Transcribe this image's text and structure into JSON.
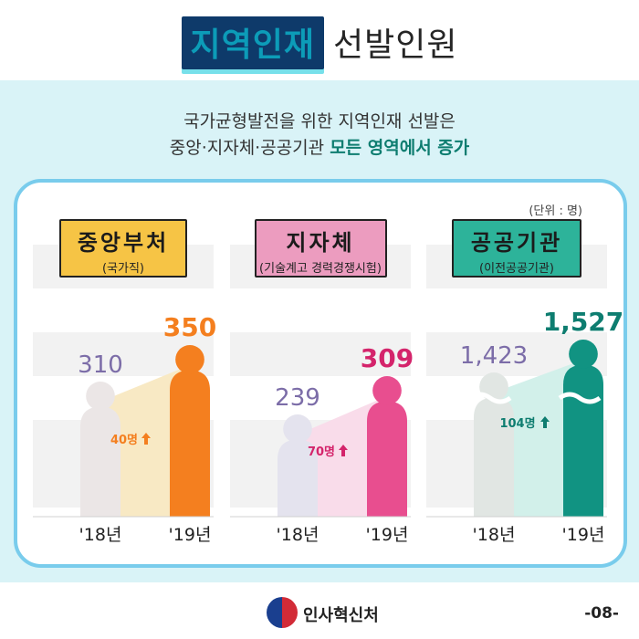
{
  "header": {
    "title_highlight": "지역인재",
    "title_rest": "선발인원"
  },
  "intro": {
    "line1": "국가균형발전을 위한 지역인재 선발은",
    "line2_plain": "중앙·지자체·공공기관",
    "line2_emphasis": "모든 영역에서 증가"
  },
  "unit_label": "(단위 : 명)",
  "colors": {
    "board_border": "#79ccec",
    "band": "#d9f3f7",
    "title_dark": "#0e3a6a",
    "title_light": "#0c9cb8"
  },
  "chart_data": [
    {
      "type": "bar",
      "title": "중앙부처",
      "subtitle": "(국가직)",
      "title_box_color": "#f6c445",
      "categories": [
        "'18년",
        "'19년"
      ],
      "values": [
        310,
        350
      ],
      "value_labels": [
        "310",
        "350"
      ],
      "value_colors": [
        "#7c6da8",
        "#f47f1f"
      ],
      "bar_colors": [
        "#ebe6e6",
        "#f47f1f"
      ],
      "trend_fill": "#f8e9c4",
      "increase_label": "40명",
      "increase_color": "#f47f1f",
      "broken_axis": false
    },
    {
      "type": "bar",
      "title": "지자체",
      "subtitle": "(기술계고 경력경쟁시험)",
      "title_box_color": "#ec9cbf",
      "categories": [
        "'18년",
        "'19년"
      ],
      "values": [
        239,
        309
      ],
      "value_labels": [
        "239",
        "309"
      ],
      "value_colors": [
        "#7c6da8",
        "#d4246b"
      ],
      "bar_colors": [
        "#e4e3ee",
        "#e84e8f"
      ],
      "trend_fill": "#f9dcea",
      "increase_label": "70명",
      "increase_color": "#d4246b",
      "broken_axis": false
    },
    {
      "type": "bar",
      "title": "공공기관",
      "subtitle": "(이전공공기관)",
      "title_box_color": "#2db39a",
      "categories": [
        "'18년",
        "'19년"
      ],
      "values": [
        1423,
        1527
      ],
      "value_labels": [
        "1,423",
        "1,527"
      ],
      "value_colors": [
        "#7c6da8",
        "#0e7d70"
      ],
      "bar_colors": [
        "#e1e6e3",
        "#119382"
      ],
      "trend_fill": "#d2f0ea",
      "increase_label": "104명",
      "increase_color": "#0e7d70",
      "broken_axis": true
    }
  ],
  "footer": {
    "org_name": "인사혁신처",
    "page_number": "-08-"
  }
}
